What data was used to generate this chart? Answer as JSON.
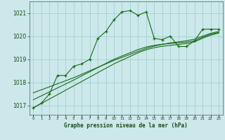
{
  "title": "Graphe pression niveau de la mer (hPa)",
  "bg_color": "#cce8ea",
  "grid_color": "#99cccc",
  "line_color": "#1a6b1a",
  "x_values": [
    0,
    1,
    2,
    3,
    4,
    5,
    6,
    7,
    8,
    9,
    10,
    11,
    12,
    13,
    14,
    15,
    16,
    17,
    18,
    19,
    20,
    21,
    22,
    23
  ],
  "main_line": [
    1016.9,
    1017.1,
    1017.5,
    1018.3,
    1018.3,
    1018.7,
    1018.8,
    1019.0,
    1019.9,
    1020.2,
    1020.7,
    1021.05,
    1021.1,
    1020.9,
    1021.05,
    1019.9,
    1019.85,
    1020.0,
    1019.55,
    1019.55,
    1019.8,
    1020.3,
    1020.3,
    1020.3
  ],
  "ref_line1": [
    1017.55,
    1017.68,
    1017.81,
    1017.94,
    1018.07,
    1018.2,
    1018.35,
    1018.5,
    1018.65,
    1018.8,
    1018.95,
    1019.08,
    1019.21,
    1019.34,
    1019.47,
    1019.57,
    1019.64,
    1019.71,
    1019.75,
    1019.8,
    1019.87,
    1020.0,
    1020.12,
    1020.2
  ],
  "ref_line2": [
    1017.25,
    1017.42,
    1017.59,
    1017.76,
    1017.93,
    1018.1,
    1018.28,
    1018.46,
    1018.64,
    1018.82,
    1019.0,
    1019.14,
    1019.28,
    1019.42,
    1019.53,
    1019.6,
    1019.65,
    1019.68,
    1019.71,
    1019.74,
    1019.8,
    1019.95,
    1020.08,
    1020.16
  ],
  "ref_line3": [
    1016.9,
    1017.09,
    1017.28,
    1017.47,
    1017.66,
    1017.85,
    1018.04,
    1018.23,
    1018.42,
    1018.61,
    1018.8,
    1018.96,
    1019.12,
    1019.28,
    1019.41,
    1019.5,
    1019.56,
    1019.6,
    1019.64,
    1019.68,
    1019.75,
    1019.91,
    1020.04,
    1020.13
  ],
  "ylim": [
    1016.6,
    1021.5
  ],
  "yticks": [
    1017,
    1018,
    1019,
    1020,
    1021
  ],
  "xlim": [
    -0.5,
    23.5
  ]
}
